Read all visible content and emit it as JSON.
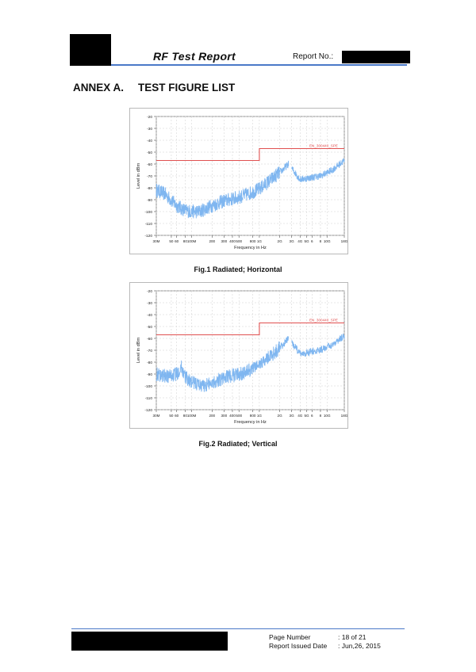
{
  "header": {
    "title": "RF  Test  Report",
    "report_no_label": "Report  No.:"
  },
  "annex": {
    "number": "ANNEX A.",
    "title": "TEST FIGURE LIST"
  },
  "figures": [
    {
      "caption": "Fig.1 Radiated; Horizontal"
    },
    {
      "caption": "Fig.2 Radiated; Vertical"
    }
  ],
  "footer": {
    "page_number_label": "Page Number",
    "page_number_value": ": 18 of 21",
    "issued_label": "Report Issued Date",
    "issued_value": ": Jun,26, 2015"
  },
  "colors": {
    "header_rule": "#4a79c8",
    "limit_line": "#e05050",
    "trace": "#7fb6f0"
  },
  "chart_data": [
    {
      "type": "line",
      "xlabel": "Frequency in Hz",
      "ylabel": "Level in dBm",
      "x_scale": "log",
      "xlim": [
        30000000,
        18000000000
      ],
      "ylim": [
        -120,
        -20
      ],
      "grid": true,
      "y_ticks": [
        "-20",
        "-30",
        "-40",
        "-50",
        "-60",
        "-70",
        "-80",
        "-90",
        "-100",
        "-110",
        "-120"
      ],
      "x_ticks": [
        {
          "x": 30000000,
          "label": "30M"
        },
        {
          "x": 50000000,
          "label": "50"
        },
        {
          "x": 60000000,
          "label": "60"
        },
        {
          "x": 80000000,
          "label": "80"
        },
        {
          "x": 100000000,
          "label": "100M"
        },
        {
          "x": 200000000,
          "label": "200"
        },
        {
          "x": 300000000,
          "label": "300"
        },
        {
          "x": 400000000,
          "label": "400"
        },
        {
          "x": 500000000,
          "label": "500"
        },
        {
          "x": 800000000,
          "label": "800"
        },
        {
          "x": 1000000000,
          "label": "1G"
        },
        {
          "x": 2000000000,
          "label": "2G"
        },
        {
          "x": 3000000000,
          "label": "3G"
        },
        {
          "x": 4000000000,
          "label": "4G"
        },
        {
          "x": 5000000000,
          "label": "5G"
        },
        {
          "x": 6000000000,
          "label": "6"
        },
        {
          "x": 8000000000,
          "label": "8"
        },
        {
          "x": 10000000000,
          "label": "10G"
        },
        {
          "x": 18000000000,
          "label": "18G"
        }
      ],
      "limit": {
        "name": "EN_300440_SPE",
        "segments": [
          {
            "x": [
              30000000,
              1000000000
            ],
            "y": -57
          },
          {
            "x": [
              1000000000,
              18000000000
            ],
            "y": -47
          }
        ]
      },
      "series": [
        {
          "x": [
            30000000,
            40000000,
            60000000,
            80000000,
            100000000,
            130000000,
            200000000,
            300000000,
            500000000,
            700000000,
            1000000000,
            1500000000,
            2200000000,
            2700000000,
            4000000000,
            8000000000,
            12000000000,
            18000000000
          ],
          "y": [
            -82,
            -85,
            -95,
            -99,
            -100,
            -100,
            -95,
            -91,
            -88,
            -85,
            -81,
            -73,
            -65,
            -60,
            -73,
            -70,
            -65,
            -57
          ]
        }
      ]
    },
    {
      "type": "line",
      "xlabel": "Frequency in Hz",
      "ylabel": "Level in dBm",
      "x_scale": "log",
      "xlim": [
        30000000,
        18000000000
      ],
      "ylim": [
        -120,
        -20
      ],
      "grid": true,
      "y_ticks": [
        "-20",
        "-30",
        "-40",
        "-50",
        "-60",
        "-70",
        "-80",
        "-90",
        "-100",
        "-110",
        "-120"
      ],
      "x_ticks": [
        {
          "x": 30000000,
          "label": "30M"
        },
        {
          "x": 50000000,
          "label": "50"
        },
        {
          "x": 60000000,
          "label": "60"
        },
        {
          "x": 80000000,
          "label": "80"
        },
        {
          "x": 100000000,
          "label": "100M"
        },
        {
          "x": 200000000,
          "label": "200"
        },
        {
          "x": 300000000,
          "label": "300"
        },
        {
          "x": 400000000,
          "label": "400"
        },
        {
          "x": 500000000,
          "label": "500"
        },
        {
          "x": 800000000,
          "label": "800"
        },
        {
          "x": 1000000000,
          "label": "1G"
        },
        {
          "x": 2000000000,
          "label": "2G"
        },
        {
          "x": 3000000000,
          "label": "3G"
        },
        {
          "x": 4000000000,
          "label": "4G"
        },
        {
          "x": 5000000000,
          "label": "5G"
        },
        {
          "x": 6000000000,
          "label": "6"
        },
        {
          "x": 8000000000,
          "label": "8"
        },
        {
          "x": 10000000000,
          "label": "10G"
        },
        {
          "x": 18000000000,
          "label": "18G"
        }
      ],
      "limit": {
        "name": "EN_300440_SPE",
        "segments": [
          {
            "x": [
              30000000,
              1000000000
            ],
            "y": -57
          },
          {
            "x": [
              1000000000,
              18000000000
            ],
            "y": -47
          }
        ]
      },
      "series": [
        {
          "x": [
            30000000,
            45000000,
            60000000,
            70000000,
            80000000,
            100000000,
            150000000,
            200000000,
            300000000,
            500000000,
            700000000,
            1000000000,
            1500000000,
            2200000000,
            2700000000,
            4000000000,
            8000000000,
            12000000000,
            18000000000
          ],
          "y": [
            -90,
            -92,
            -90,
            -84,
            -92,
            -97,
            -100,
            -97,
            -93,
            -90,
            -87,
            -82,
            -74,
            -66,
            -60,
            -73,
            -70,
            -65,
            -58
          ]
        }
      ]
    }
  ]
}
